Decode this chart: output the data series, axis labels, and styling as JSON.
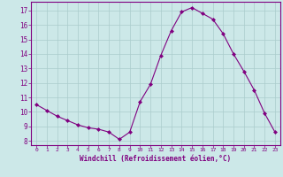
{
  "x": [
    0,
    1,
    2,
    3,
    4,
    5,
    6,
    7,
    8,
    9,
    10,
    11,
    12,
    13,
    14,
    15,
    16,
    17,
    18,
    19,
    20,
    21,
    22,
    23
  ],
  "y": [
    10.5,
    10.1,
    9.7,
    9.4,
    9.1,
    8.9,
    8.8,
    8.6,
    8.1,
    8.6,
    10.7,
    11.9,
    13.9,
    15.6,
    16.9,
    17.2,
    16.8,
    16.4,
    15.4,
    14.0,
    12.8,
    11.5,
    9.9,
    8.6
  ],
  "line_color": "#800080",
  "marker": "D",
  "marker_size": 2.0,
  "bg_color": "#cce8e8",
  "grid_color": "#aacccc",
  "xlabel": "Windchill (Refroidissement éolien,°C)",
  "xlabel_color": "#800080",
  "tick_color": "#800080",
  "ylabel_ticks": [
    8,
    9,
    10,
    11,
    12,
    13,
    14,
    15,
    16,
    17
  ],
  "xlim": [
    -0.5,
    23.5
  ],
  "ylim": [
    7.7,
    17.6
  ],
  "spine_color": "#800080"
}
